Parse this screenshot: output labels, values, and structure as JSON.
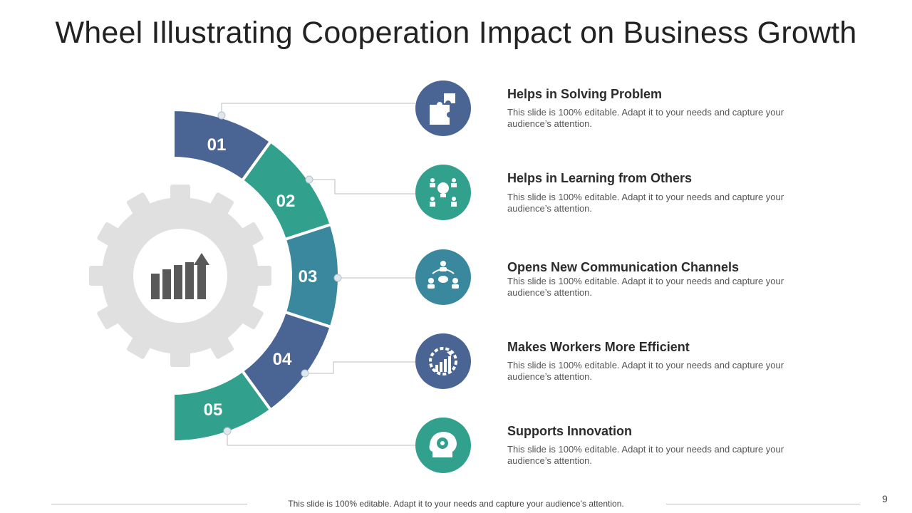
{
  "title": "Wheel Illustrating Cooperation Impact on Business Growth",
  "colors": {
    "navy": "#4A6593",
    "teal": "#31A08C",
    "steel": "#3A889E",
    "gear": "#E0E0E0",
    "chart_icon": "#595959"
  },
  "segments": [
    "01",
    "02",
    "03",
    "04",
    "05"
  ],
  "items": [
    {
      "title": "Helps in Solving Problem",
      "desc": "This slide is 100% editable. Adapt it to your needs and capture your audience’s attention.",
      "icon": "puzzle-icon",
      "color": "#4A6593"
    },
    {
      "title": "Helps in Learning from Others",
      "desc": "This slide is 100% editable. Adapt it to your needs and capture your audience’s attention.",
      "icon": "team-idea-icon",
      "color": "#31A08C"
    },
    {
      "title": "Opens New Communication Channels",
      "desc": "This slide is 100% editable. Adapt it to your needs and capture your audience’s attention.",
      "icon": "communication-icon",
      "color": "#3A889E"
    },
    {
      "title": "Makes Workers More Efficient",
      "desc": "This slide is 100% editable. Adapt it to your needs and capture your audience’s attention.",
      "icon": "efficiency-gear-chart-icon",
      "color": "#4A6593"
    },
    {
      "title": "Supports Innovation",
      "desc": "This slide is 100% editable. Adapt it to your needs and capture your audience’s attention.",
      "icon": "head-gear-icon",
      "color": "#31A08C"
    }
  ],
  "center_icon": "growth-bar-chart-icon",
  "footer": "This slide is 100% editable. Adapt it to your needs and capture your audience’s attention.",
  "page_number": "9"
}
